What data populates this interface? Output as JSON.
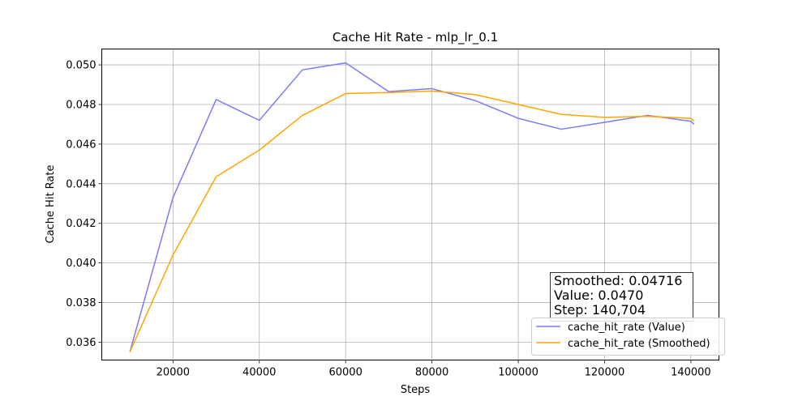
{
  "chart_data": {
    "type": "line",
    "title": "Cache Hit Rate - mlp_lr_0.1",
    "xlabel": "Steps",
    "ylabel": "Cache Hit Rate",
    "xlim": [
      3500,
      146500
    ],
    "ylim": [
      0.0351,
      0.0508
    ],
    "x_ticks": [
      20000,
      40000,
      60000,
      80000,
      100000,
      120000,
      140000
    ],
    "x_tick_labels": [
      "20000",
      "40000",
      "60000",
      "80000",
      "100000",
      "120000",
      "140000"
    ],
    "y_ticks": [
      0.036,
      0.038,
      0.04,
      0.042,
      0.044,
      0.046,
      0.048,
      0.05
    ],
    "y_tick_labels": [
      "0.036",
      "0.038",
      "0.040",
      "0.042",
      "0.044",
      "0.046",
      "0.048",
      "0.050"
    ],
    "grid": true,
    "legend_position": "bottom-right",
    "series": [
      {
        "name": "cache_hit_rate (Value)",
        "color": "#7b7bf7",
        "x": [
          10000,
          20000,
          30000,
          40000,
          50000,
          60000,
          70000,
          80000,
          90000,
          100000,
          110000,
          120000,
          130000,
          140000,
          140704
        ],
        "y": [
          0.0355,
          0.0433,
          0.04825,
          0.0472,
          0.04975,
          0.0501,
          0.04865,
          0.0488,
          0.0482,
          0.0473,
          0.04675,
          0.0471,
          0.04745,
          0.04715,
          0.047
        ]
      },
      {
        "name": "cache_hit_rate (Smoothed)",
        "color": "#ffa500",
        "x": [
          10000,
          20000,
          30000,
          40000,
          50000,
          60000,
          70000,
          80000,
          90000,
          100000,
          110000,
          120000,
          130000,
          140000,
          140704
        ],
        "y": [
          0.0355,
          0.0404,
          0.04435,
          0.0457,
          0.04745,
          0.04855,
          0.0486,
          0.04868,
          0.0485,
          0.048,
          0.0475,
          0.04735,
          0.0474,
          0.0473,
          0.04716
        ]
      }
    ],
    "annotation": {
      "lines": [
        "Smoothed: 0.04716",
        "Value: 0.0470",
        "Step: 140,704"
      ],
      "position": "bottom-right"
    }
  }
}
